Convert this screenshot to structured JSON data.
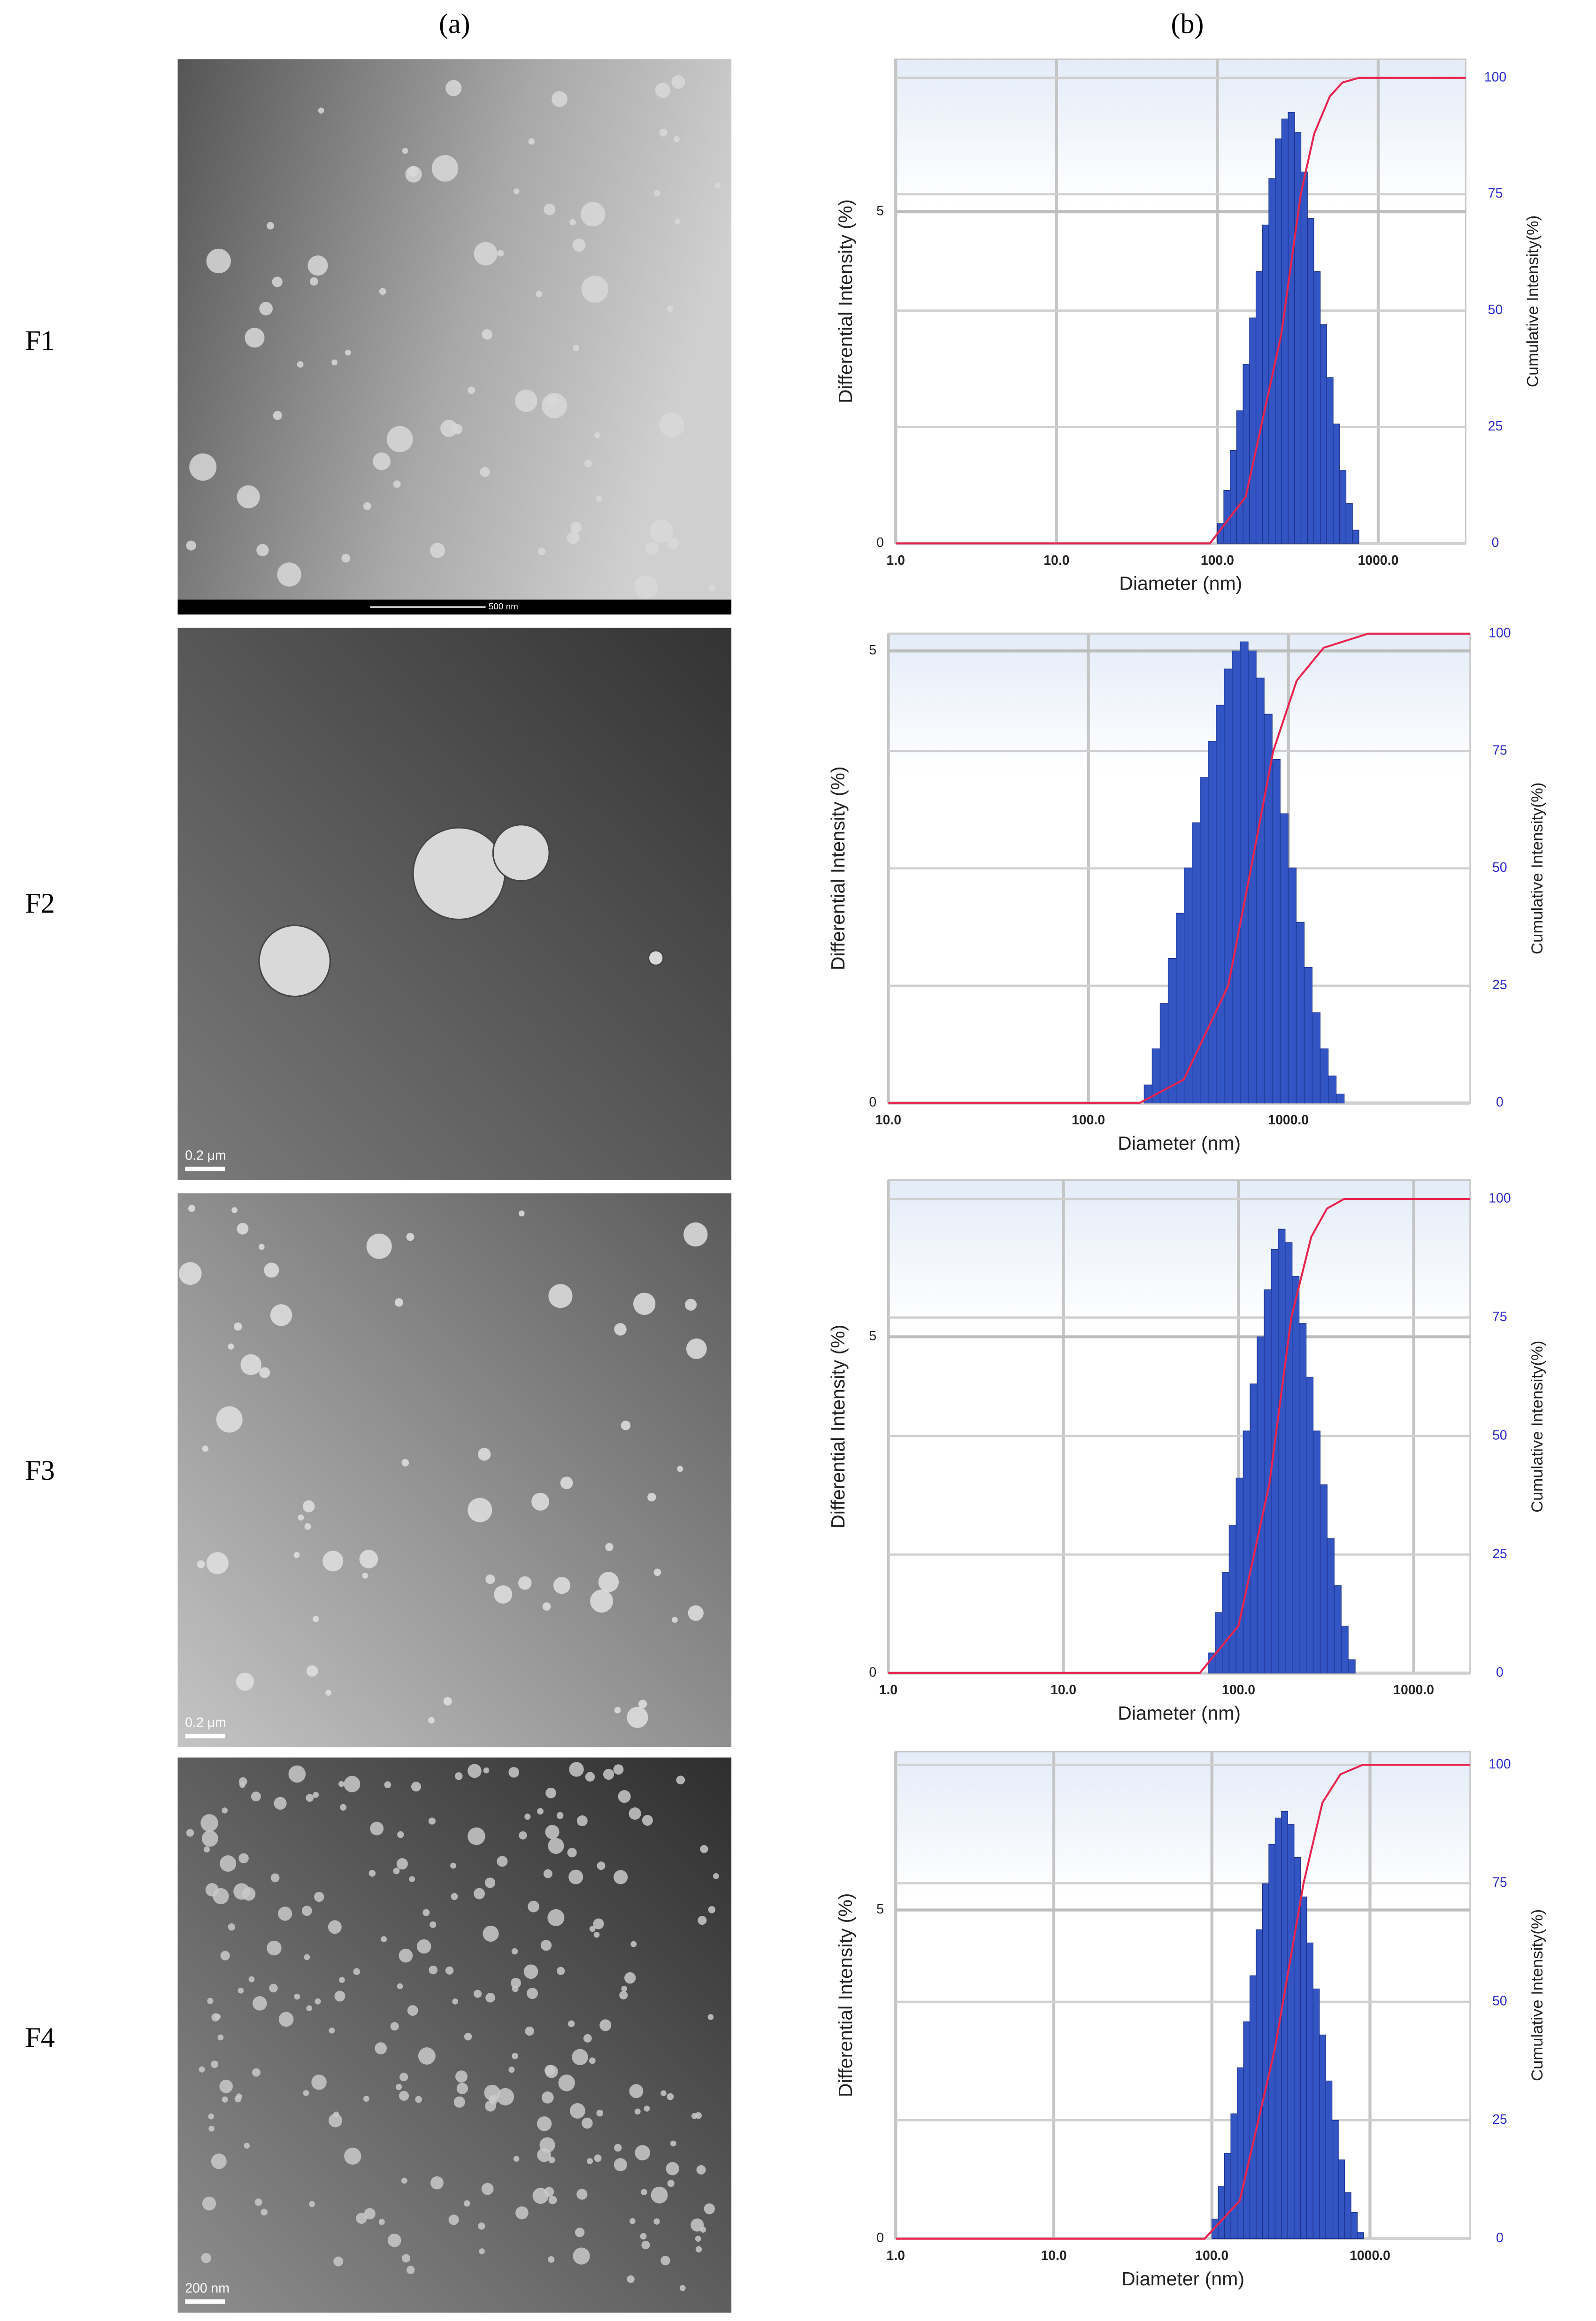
{
  "panel_labels": [
    "(a)",
    "(b)"
  ],
  "row_labels": [
    "F1",
    "F2",
    "F3",
    "F4"
  ],
  "scale_bars": [
    "500 nm",
    "0.2 μm",
    "0.2 μm",
    "200 nm"
  ],
  "chart_data": [
    {
      "type": "histogram",
      "x_scale": "log",
      "grid": true,
      "xlabel": "Diameter (nm)",
      "ylabel": "Differential Intensity (%)",
      "y2label": "Cumulative Intensity(%)",
      "xlim": [
        1,
        3500
      ],
      "ylim": [
        0,
        7.3
      ],
      "y2lim": [
        0,
        104
      ],
      "xticks": [
        {
          "value": 1,
          "label": "1.0"
        },
        {
          "value": 10,
          "label": "10.0"
        },
        {
          "value": 100,
          "label": "100.0"
        },
        {
          "value": 1000,
          "label": "1000.0"
        }
      ],
      "yticks": [
        0,
        5
      ],
      "y2ticks": [
        0,
        25,
        50,
        75,
        100
      ],
      "color": "#3355c4",
      "bins": [
        100,
        109.6,
        120.2,
        131.8,
        144.5,
        158.5,
        173.8,
        190.5,
        208.9,
        229.1,
        251.2,
        275.4,
        302.0,
        331.1,
        363.1,
        398.1,
        436.5,
        478.6,
        524.8,
        575.4,
        631.0,
        691.8,
        758.6
      ],
      "values": [
        0.3,
        0.8,
        1.4,
        2.0,
        2.7,
        3.4,
        4.1,
        4.8,
        5.5,
        6.1,
        6.4,
        6.5,
        6.2,
        5.6,
        4.9,
        4.1,
        3.3,
        2.5,
        1.8,
        1.1,
        0.6,
        0.2
      ],
      "cumulative": {
        "axis": "y2",
        "color": "#e8244e",
        "x": [
          1,
          90,
          150,
          250,
          330,
          400,
          500,
          600,
          760,
          3500
        ],
        "values": [
          0,
          0,
          10,
          45,
          75,
          88,
          96,
          99,
          100,
          100
        ]
      }
    },
    {
      "type": "histogram",
      "x_scale": "log",
      "grid": true,
      "xlabel": "Diameter (nm)",
      "ylabel": "Differential Intensity (%)",
      "y2label": "Cumulative Intensity(%)",
      "xlim": [
        10,
        8100
      ],
      "ylim": [
        0,
        5.19
      ],
      "y2lim": [
        0,
        100
      ],
      "xticks": [
        {
          "value": 10,
          "label": "10.0"
        },
        {
          "value": 100,
          "label": "100.0"
        },
        {
          "value": 1000,
          "label": "1000.0"
        }
      ],
      "yticks": [
        0,
        5
      ],
      "y2ticks": [
        0,
        25,
        50,
        75,
        100
      ],
      "color": "#3355c4",
      "bins": [
        190,
        208.3,
        228.4,
        250.5,
        274.7,
        301.2,
        330.2,
        362.1,
        397.1,
        435.4,
        477.4,
        523.5,
        574.0,
        629.4,
        690.2,
        756.8,
        829.8,
        909.9,
        997.7,
        1094,
        1200,
        1315,
        1442,
        1582,
        1734,
        1902
      ],
      "values": [
        0.2,
        0.6,
        1.1,
        1.6,
        2.1,
        2.6,
        3.1,
        3.6,
        4.0,
        4.4,
        4.8,
        5.0,
        5.1,
        5.0,
        4.7,
        4.3,
        3.8,
        3.2,
        2.6,
        2.0,
        1.5,
        1.0,
        0.6,
        0.3,
        0.1
      ],
      "cumulative": {
        "axis": "y2",
        "color": "#e8244e",
        "x": [
          10,
          180,
          300,
          500,
          650,
          840,
          1100,
          1500,
          2500,
          8100
        ],
        "values": [
          0,
          0,
          5,
          25,
          50,
          75,
          90,
          97,
          100,
          100
        ]
      }
    },
    {
      "type": "histogram",
      "x_scale": "log",
      "grid": true,
      "xlabel": "Diameter (nm)",
      "ylabel": "Differential Intensity (%)",
      "y2label": "Cumulative Intensity(%)",
      "xlim": [
        1,
        2100
      ],
      "ylim": [
        0,
        7.33
      ],
      "y2lim": [
        0,
        104
      ],
      "xticks": [
        {
          "value": 1,
          "label": "1.0"
        },
        {
          "value": 10,
          "label": "10.0"
        },
        {
          "value": 100,
          "label": "100.0"
        },
        {
          "value": 1000,
          "label": "1000.0"
        }
      ],
      "yticks": [
        0,
        5
      ],
      "y2ticks": [
        0,
        25,
        50,
        75,
        100
      ],
      "color": "#3355c4",
      "bins": [
        67,
        73.5,
        80.6,
        88.3,
        96.8,
        106.2,
        116.4,
        127.6,
        140.0,
        153.5,
        168.3,
        184.5,
        202.3,
        221.8,
        243.3,
        266.7,
        292.5,
        320.7,
        351.6,
        385.5,
        422.7,
        463.5
      ],
      "values": [
        0.3,
        0.9,
        1.5,
        2.2,
        2.9,
        3.6,
        4.3,
        5.0,
        5.7,
        6.3,
        6.6,
        6.4,
        5.9,
        5.2,
        4.4,
        3.6,
        2.8,
        2.0,
        1.3,
        0.7,
        0.2
      ],
      "cumulative": {
        "axis": "y2",
        "color": "#e8244e",
        "x": [
          1,
          60,
          100,
          150,
          200,
          260,
          320,
          400,
          470,
          2100
        ],
        "values": [
          0,
          0,
          10,
          40,
          75,
          92,
          98,
          100,
          100,
          100
        ]
      }
    },
    {
      "type": "histogram",
      "x_scale": "log",
      "grid": true,
      "xlabel": "Diameter (nm)",
      "ylabel": "Differential Intensity (%)",
      "y2label": "Cumulative Intensity(%)",
      "xlim": [
        1,
        4300
      ],
      "ylim": [
        0,
        7.41
      ],
      "y2lim": [
        0,
        102.8
      ],
      "xticks": [
        {
          "value": 1,
          "label": "1.0"
        },
        {
          "value": 10,
          "label": "10.0"
        },
        {
          "value": 100,
          "label": "100.0"
        },
        {
          "value": 1000,
          "label": "1000.0"
        }
      ],
      "yticks": [
        0,
        5
      ],
      "y2ticks": [
        0,
        25,
        50,
        75,
        100
      ],
      "color": "#3355c4",
      "bins": [
        100,
        109.6,
        120.2,
        131.8,
        144.5,
        158.5,
        173.8,
        190.5,
        208.9,
        229.1,
        251.2,
        275.4,
        302.0,
        331.1,
        363.1,
        398.1,
        436.5,
        478.6,
        524.8,
        575.4,
        631.0,
        691.8,
        758.6,
        831.8,
        912.0
      ],
      "values": [
        0.3,
        0.8,
        1.3,
        1.9,
        2.6,
        3.3,
        4.0,
        4.7,
        5.4,
        6.0,
        6.4,
        6.5,
        6.3,
        5.8,
        5.2,
        4.5,
        3.8,
        3.1,
        2.4,
        1.8,
        1.2,
        0.7,
        0.4,
        0.1
      ],
      "cumulative": {
        "axis": "y2",
        "color": "#e8244e",
        "x": [
          1,
          90,
          150,
          250,
          380,
          500,
          650,
          900,
          4300
        ],
        "values": [
          0,
          0,
          8,
          40,
          75,
          92,
          98,
          100,
          100
        ]
      }
    }
  ]
}
